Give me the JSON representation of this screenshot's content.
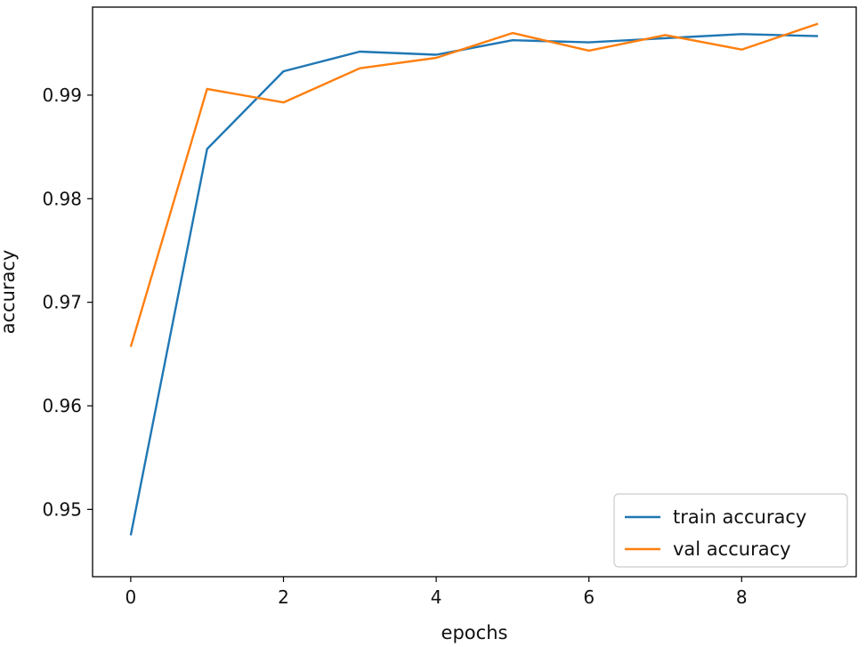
{
  "chart_data": {
    "type": "line",
    "title": "",
    "xlabel": "epochs",
    "ylabel": "accuracy",
    "xlim": [
      -0.5,
      9.5
    ],
    "ylim": [
      0.9435,
      0.9985
    ],
    "xticks": [
      0,
      2,
      4,
      6,
      8
    ],
    "yticks": [
      0.95,
      0.96,
      0.97,
      0.98,
      0.99
    ],
    "xtick_labels": [
      "0",
      "2",
      "4",
      "6",
      "8"
    ],
    "ytick_labels": [
      "0.95",
      "0.96",
      "0.97",
      "0.98",
      "0.99"
    ],
    "grid": false,
    "legend_position": "lower-right",
    "x": [
      0,
      1,
      2,
      3,
      4,
      5,
      6,
      7,
      8,
      9
    ],
    "series": [
      {
        "name": "train accuracy",
        "color": "#1f77b4",
        "values": [
          0.9475,
          0.9848,
          0.9923,
          0.9942,
          0.9939,
          0.9953,
          0.9951,
          0.9955,
          0.9959,
          0.9957
        ]
      },
      {
        "name": "val accuracy",
        "color": "#ff7f0e",
        "values": [
          0.9657,
          0.9906,
          0.9893,
          0.9926,
          0.9936,
          0.996,
          0.9943,
          0.9958,
          0.9944,
          0.9969
        ]
      }
    ]
  }
}
